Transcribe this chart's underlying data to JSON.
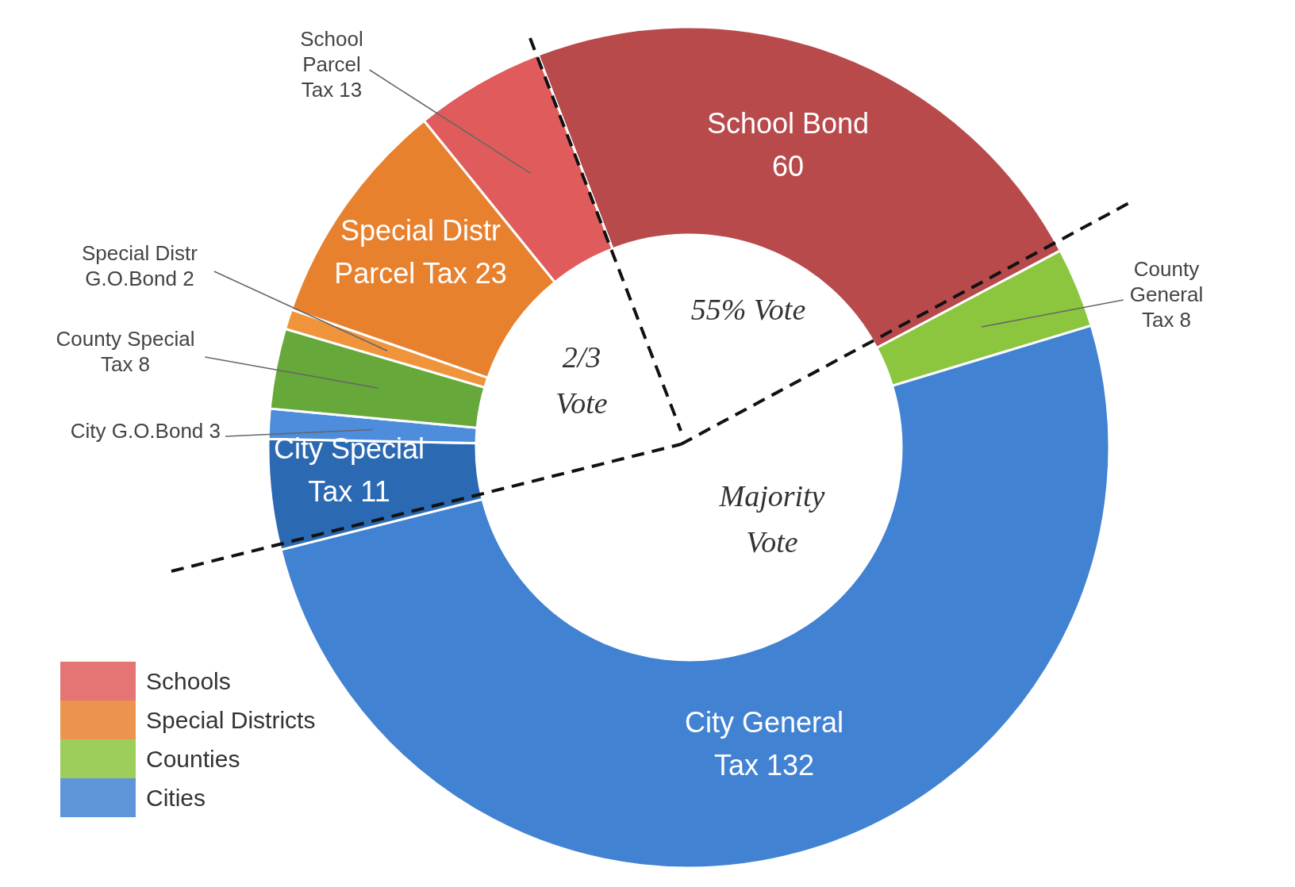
{
  "chart_data": {
    "type": "donut",
    "categories": [
      "School Bond 60",
      "County General Tax 8",
      "City General Tax 132",
      "City Special Tax 11",
      "City G.O.Bond 3",
      "County Special Tax 8",
      "Special Distr G.O.Bond 2",
      "Special Distr Parcel Tax 23",
      "School Parcel Tax 13"
    ],
    "values": [
      60,
      8,
      132,
      11,
      3,
      8,
      2,
      23,
      13
    ],
    "colors": [
      "#b84a4c",
      "#8cc63f",
      "#4282d2",
      "#2b69b2",
      "#4d8ddb",
      "#66a83a",
      "#f0943c",
      "#e8812e",
      "#e05c5c"
    ],
    "annotations": [
      "55% Vote",
      "2/3 Vote",
      "Majority Vote",
      "Schools",
      "Special Districts",
      "Counties",
      "Cities"
    ]
  }
}
